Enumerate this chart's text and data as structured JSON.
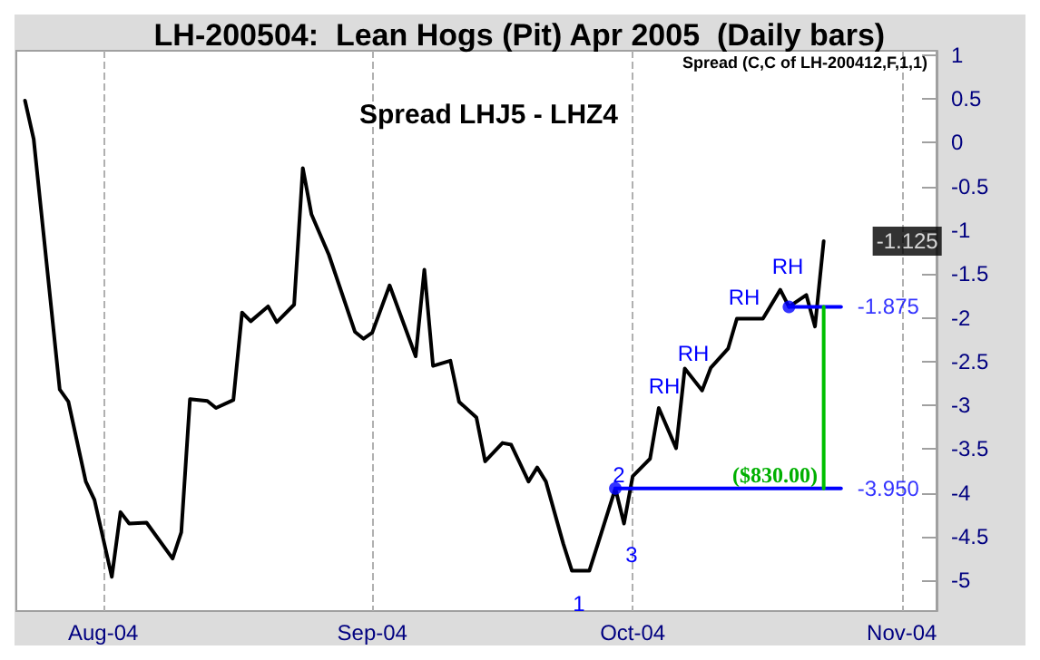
{
  "chart_data": {
    "type": "line",
    "title": "LH-200504:  Lean Hogs (Pit) Apr 2005  (Daily bars)",
    "series": [
      {
        "color": "#000000",
        "x": [
          "2004-07-23",
          "2004-07-24",
          "2004-07-27",
          "2004-07-28",
          "2004-07-30",
          "2004-07-31",
          "2004-08-02",
          "2004-08-03",
          "2004-08-04",
          "2004-08-06",
          "2004-08-09",
          "2004-08-10",
          "2004-08-11",
          "2004-08-13",
          "2004-08-14",
          "2004-08-16",
          "2004-08-17",
          "2004-08-18",
          "2004-08-20",
          "2004-08-21",
          "2004-08-23",
          "2004-08-24",
          "2004-08-25",
          "2004-08-27",
          "2004-08-30",
          "2004-08-31",
          "2004-09-01",
          "2004-09-03",
          "2004-09-06",
          "2004-09-07",
          "2004-09-08",
          "2004-09-10",
          "2004-09-11",
          "2004-09-13",
          "2004-09-14",
          "2004-09-16",
          "2004-09-17",
          "2004-09-19",
          "2004-09-20",
          "2004-09-21",
          "2004-09-23",
          "2004-09-24",
          "2004-09-26",
          "2004-09-27",
          "2004-09-29",
          "2004-09-30",
          "2004-10-01",
          "2004-10-03",
          "2004-10-04",
          "2004-10-06",
          "2004-10-07",
          "2004-10-09",
          "2004-10-10",
          "2004-10-12",
          "2004-10-13",
          "2004-10-15",
          "2004-10-16",
          "2004-10-18",
          "2004-10-19",
          "2004-10-21",
          "2004-10-22",
          "2004-10-23"
        ],
        "values": [
          0.48,
          0.04,
          -2.82,
          -2.96,
          -3.87,
          -4.08,
          -4.96,
          -4.22,
          -4.35,
          -4.34,
          -4.75,
          -4.45,
          -2.93,
          -2.95,
          -3.03,
          -2.94,
          -1.94,
          -2.04,
          -1.87,
          -2.05,
          -1.85,
          -0.29,
          -0.82,
          -1.28,
          -2.16,
          -2.24,
          -2.17,
          -1.63,
          -2.44,
          -1.45,
          -2.55,
          -2.49,
          -2.96,
          -3.14,
          -3.64,
          -3.43,
          -3.45,
          -3.87,
          -3.71,
          -3.87,
          -4.58,
          -4.89,
          -4.89,
          -4.58,
          -3.95,
          -4.35,
          -3.81,
          -3.61,
          -3.03,
          -3.49,
          -2.58,
          -2.83,
          -2.57,
          -2.35,
          -2.01,
          -2.01,
          -2.01,
          -1.68,
          -1.875,
          -1.74,
          -2.1,
          -1.125
        ]
      },
      {
        "color": "#0000ff",
        "x": [
          "2004-09-29",
          "2004-10-25"
        ],
        "values": [
          -3.95,
          -3.95
        ]
      },
      {
        "color": "#0000ff",
        "x": [
          "2004-10-19",
          "2004-10-25"
        ],
        "values": [
          -1.875,
          -1.875
        ]
      },
      {
        "color": "#00c000",
        "x": [
          "2004-10-23",
          "2004-10-23"
        ],
        "values": [
          -1.875,
          -3.95
        ]
      },
      {
        "type": "scatter",
        "marker": "circle",
        "color": "#0000ff",
        "x": [
          "2004-09-29",
          "2004-10-19"
        ],
        "values": [
          -3.95,
          -1.875
        ]
      }
    ],
    "xlim": [
      "2004-07-22",
      "2004-11-05"
    ],
    "xticks": [
      {
        "value": "2004-08-01",
        "label": "Aug-04"
      },
      {
        "value": "2004-09-01",
        "label": "Sep-04"
      },
      {
        "value": "2004-10-01",
        "label": "Oct-04"
      },
      {
        "value": "2004-11-01",
        "label": "Nov-04"
      }
    ],
    "ylim": [
      -5.35,
      1.05
    ],
    "yticks": [
      -5,
      -4.5,
      -4,
      -3.5,
      -3,
      -2.5,
      -2,
      -1.5,
      -1,
      -0.5,
      0,
      0.5,
      1
    ],
    "grid": "x",
    "marker": "none",
    "annotations": [
      "Spread LHJ5 - LHZ4",
      "Spread (C,C of LH-200412,F,1,1)",
      "1",
      "2",
      "3",
      "RH",
      "RH",
      "RH",
      "RH",
      "($830.00)",
      {
        "text": "-1.875",
        "x": "2004-10-25",
        "y": -1.875
      },
      {
        "text": "-3.950",
        "x": "2004-10-25",
        "y": -3.95
      },
      {
        "text": "-1.125",
        "x": "2004-10-23",
        "y": -1.125
      }
    ]
  }
}
